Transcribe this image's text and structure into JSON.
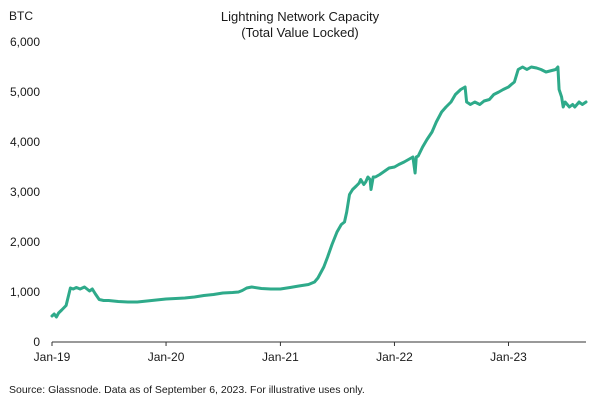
{
  "chart_data": {
    "type": "line",
    "title": "Lightning Network Capacity",
    "subtitle": "(Total Value Locked)",
    "ylabel": "BTC",
    "xlabel": "",
    "source": "Source: Glassnode. Data as of September 6, 2023. For illustrative uses only.",
    "ylim": [
      0,
      6000
    ],
    "y_ticks": [
      0,
      1000,
      2000,
      3000,
      4000,
      5000,
      6000
    ],
    "y_tick_labels": [
      "0",
      "1,000",
      "2,000",
      "3,000",
      "4,000",
      "5,000",
      "6,000"
    ],
    "xlim": [
      "2019-01-01",
      "2023-09-06"
    ],
    "x_ticks": [
      "2019-01-01",
      "2020-01-01",
      "2021-01-01",
      "2022-01-01",
      "2023-01-01"
    ],
    "x_tick_labels": [
      "Jan-19",
      "Jan-20",
      "Jan-21",
      "Jan-22",
      "Jan-23"
    ],
    "grid": false,
    "legend": "none",
    "colors": {
      "line": "#2eaa8a",
      "axis": "#333333",
      "text": "#1a1a1a"
    },
    "series": [
      {
        "x": [
          "2019-01-01",
          "2019-01-08",
          "2019-01-15",
          "2019-01-22",
          "2019-02-01",
          "2019-02-15",
          "2019-03-01",
          "2019-03-10",
          "2019-03-20",
          "2019-04-01",
          "2019-04-15",
          "2019-05-01",
          "2019-05-10",
          "2019-05-20",
          "2019-06-01",
          "2019-06-15",
          "2019-07-01",
          "2019-08-01",
          "2019-09-01",
          "2019-10-01",
          "2019-11-01",
          "2019-12-01",
          "2020-01-01",
          "2020-02-01",
          "2020-03-01",
          "2020-04-01",
          "2020-05-01",
          "2020-06-01",
          "2020-07-01",
          "2020-08-01",
          "2020-08-20",
          "2020-09-01",
          "2020-09-15",
          "2020-10-01",
          "2020-11-01",
          "2020-12-01",
          "2021-01-01",
          "2021-02-01",
          "2021-03-01",
          "2021-04-01",
          "2021-04-20",
          "2021-05-01",
          "2021-05-20",
          "2021-06-01",
          "2021-06-15",
          "2021-07-01",
          "2021-07-15",
          "2021-07-25",
          "2021-08-01",
          "2021-08-10",
          "2021-08-20",
          "2021-09-01",
          "2021-09-10",
          "2021-09-15",
          "2021-09-25",
          "2021-10-01",
          "2021-10-08",
          "2021-10-15",
          "2021-10-18",
          "2021-10-25",
          "2021-11-01",
          "2021-11-15",
          "2021-12-01",
          "2021-12-15",
          "2022-01-01",
          "2022-01-15",
          "2022-02-01",
          "2022-02-15",
          "2022-03-01",
          "2022-03-08",
          "2022-03-12",
          "2022-03-18",
          "2022-04-01",
          "2022-04-15",
          "2022-05-01",
          "2022-05-15",
          "2022-06-01",
          "2022-06-15",
          "2022-07-01",
          "2022-07-15",
          "2022-08-01",
          "2022-08-15",
          "2022-08-20",
          "2022-08-25",
          "2022-09-01",
          "2022-09-15",
          "2022-10-01",
          "2022-10-15",
          "2022-11-01",
          "2022-11-15",
          "2022-12-01",
          "2022-12-15",
          "2023-01-01",
          "2023-01-10",
          "2023-01-20",
          "2023-02-01",
          "2023-02-15",
          "2023-03-01",
          "2023-03-15",
          "2023-04-01",
          "2023-04-15",
          "2023-05-01",
          "2023-06-01",
          "2023-06-08",
          "2023-06-12",
          "2023-06-20",
          "2023-06-25",
          "2023-07-01",
          "2023-07-15",
          "2023-07-25",
          "2023-08-01",
          "2023-08-15",
          "2023-08-25",
          "2023-09-06"
        ],
        "y": [
          520,
          560,
          500,
          580,
          640,
          730,
          1080,
          1060,
          1090,
          1060,
          1100,
          1020,
          1060,
          960,
          850,
          830,
          830,
          810,
          800,
          800,
          820,
          840,
          860,
          870,
          880,
          900,
          930,
          950,
          980,
          990,
          1000,
          1030,
          1080,
          1100,
          1070,
          1060,
          1060,
          1090,
          1120,
          1150,
          1200,
          1280,
          1500,
          1700,
          1950,
          2200,
          2350,
          2400,
          2600,
          2950,
          3050,
          3120,
          3180,
          3250,
          3150,
          3200,
          3300,
          3250,
          3050,
          3300,
          3300,
          3350,
          3420,
          3480,
          3500,
          3550,
          3600,
          3650,
          3700,
          3380,
          3700,
          3720,
          3900,
          4050,
          4200,
          4400,
          4600,
          4700,
          4800,
          4950,
          5050,
          5100,
          4800,
          4780,
          4750,
          4800,
          4750,
          4820,
          4850,
          4950,
          5000,
          5050,
          5100,
          5150,
          5200,
          5450,
          5500,
          5450,
          5500,
          5480,
          5450,
          5400,
          5450,
          5500,
          5050,
          4900,
          4700,
          4800,
          4700,
          4750,
          4700,
          4800,
          4750,
          4800
        ]
      }
    ]
  }
}
